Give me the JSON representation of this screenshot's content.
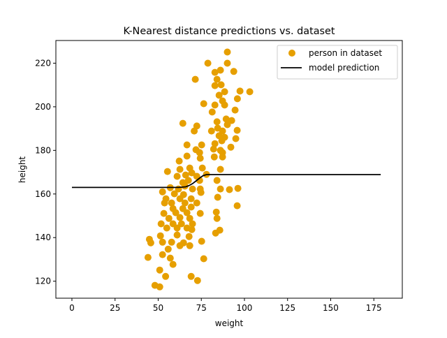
{
  "chart_data": {
    "type": "scatter",
    "title": "K-Nearest distance predictions vs. dataset",
    "xlabel": "weight",
    "ylabel": "height",
    "xlim": [
      -9.3,
      191.5
    ],
    "ylim": [
      112.2,
      230.4
    ],
    "xticks": [
      0,
      25,
      50,
      75,
      100,
      125,
      150,
      175
    ],
    "yticks": [
      120,
      140,
      160,
      180,
      200,
      220
    ],
    "grid": false,
    "legend": {
      "placement": "top-right",
      "entries": [
        "person in dataset",
        "model prediction"
      ]
    },
    "colors": {
      "scatter": "#E69F00",
      "line": "#000000"
    },
    "series": [
      {
        "name": "person in dataset",
        "type": "scatter",
        "points": [
          [
            90.1,
            225.1
          ],
          [
            78.8,
            220
          ],
          [
            90.1,
            220
          ],
          [
            86.1,
            216.8
          ],
          [
            93.8,
            216.2
          ],
          [
            82.9,
            215.8
          ],
          [
            71.5,
            212.6
          ],
          [
            84.1,
            212.6
          ],
          [
            82.9,
            209.7
          ],
          [
            86.5,
            210.1
          ],
          [
            88.5,
            206.9
          ],
          [
            97.4,
            207.2
          ],
          [
            103.1,
            206.9
          ],
          [
            85.3,
            205.3
          ],
          [
            95.9,
            203.7
          ],
          [
            76.4,
            201.4
          ],
          [
            87.3,
            202.7
          ],
          [
            82.9,
            200.8
          ],
          [
            88.5,
            200.8
          ],
          [
            81.3,
            197.6
          ],
          [
            94.6,
            198.5
          ],
          [
            64.3,
            192.4
          ],
          [
            72.4,
            191.2
          ],
          [
            84.1,
            193.1
          ],
          [
            89.4,
            194.4
          ],
          [
            90.1,
            191.8
          ],
          [
            92.6,
            193.7
          ],
          [
            70.9,
            188.9
          ],
          [
            80.9,
            188.9
          ],
          [
            84.5,
            190.2
          ],
          [
            87.3,
            188.9
          ],
          [
            95.8,
            189.2
          ],
          [
            85.3,
            186.7
          ],
          [
            88.5,
            186
          ],
          [
            95,
            185.4
          ],
          [
            66.7,
            182.5
          ],
          [
            75.2,
            182.5
          ],
          [
            82.9,
            183.1
          ],
          [
            86.9,
            184.4
          ],
          [
            92.1,
            181.5
          ],
          [
            71.9,
            180.3
          ],
          [
            74,
            179
          ],
          [
            82.1,
            180.6
          ],
          [
            86.1,
            180
          ],
          [
            87.3,
            179
          ],
          [
            62.2,
            175.1
          ],
          [
            66.7,
            177.4
          ],
          [
            74.4,
            176.4
          ],
          [
            82.5,
            177
          ],
          [
            87.3,
            177
          ],
          [
            55.4,
            170.3
          ],
          [
            62.6,
            171.3
          ],
          [
            68.3,
            171.9
          ],
          [
            75.6,
            171.9
          ],
          [
            69.5,
            169.7
          ],
          [
            86.1,
            171.3
          ],
          [
            61,
            168.1
          ],
          [
            65.9,
            168.7
          ],
          [
            72.4,
            168.1
          ],
          [
            78,
            169
          ],
          [
            84.1,
            166.2
          ],
          [
            64.3,
            165.2
          ],
          [
            67.5,
            166.2
          ],
          [
            74,
            166.2
          ],
          [
            57,
            162.9
          ],
          [
            61.8,
            162.3
          ],
          [
            65.5,
            163.6
          ],
          [
            69.9,
            162.3
          ],
          [
            74.4,
            162.3
          ],
          [
            86.1,
            162.3
          ],
          [
            91.3,
            162
          ],
          [
            96.2,
            162.6
          ],
          [
            52.5,
            161
          ],
          [
            59.4,
            160.1
          ],
          [
            64.7,
            159.7
          ],
          [
            74.8,
            160.7
          ],
          [
            84.5,
            158.5
          ],
          [
            54.5,
            157.8
          ],
          [
            62.6,
            157.8
          ],
          [
            69.1,
            157.8
          ],
          [
            57.8,
            155.9
          ],
          [
            65.5,
            155.9
          ],
          [
            72.4,
            155.9
          ],
          [
            53.7,
            155.9
          ],
          [
            95.8,
            154.6
          ],
          [
            58.6,
            153.3
          ],
          [
            64.3,
            153.3
          ],
          [
            69.1,
            154
          ],
          [
            53.3,
            151.1
          ],
          [
            60.2,
            151.4
          ],
          [
            66.7,
            151.4
          ],
          [
            74.4,
            151.1
          ],
          [
            83.7,
            151.7
          ],
          [
            56.2,
            148.8
          ],
          [
            62.6,
            149.2
          ],
          [
            68.3,
            148.8
          ],
          [
            84.1,
            148.8
          ],
          [
            51.7,
            146.3
          ],
          [
            58.6,
            146.3
          ],
          [
            63.5,
            146.3
          ],
          [
            69.9,
            146.3
          ],
          [
            55,
            144.4
          ],
          [
            61,
            144.4
          ],
          [
            66.7,
            144.4
          ],
          [
            69.5,
            143.7
          ],
          [
            85.7,
            143.4
          ],
          [
            83.3,
            142.1
          ],
          [
            51.3,
            140.8
          ],
          [
            61,
            141.2
          ],
          [
            67.9,
            140.5
          ],
          [
            57.8,
            137.9
          ],
          [
            52.5,
            137.9
          ],
          [
            64.7,
            137.6
          ],
          [
            75.2,
            138.3
          ],
          [
            62.6,
            136.3
          ],
          [
            68.3,
            136.3
          ],
          [
            44.9,
            139.2
          ],
          [
            45.7,
            137.6
          ],
          [
            55.8,
            134.7
          ],
          [
            52.5,
            132.2
          ],
          [
            57,
            130.6
          ],
          [
            44.1,
            130.9
          ],
          [
            76.4,
            130.3
          ],
          [
            58.6,
            127.7
          ],
          [
            50.9,
            125.1
          ],
          [
            54.3,
            122.2
          ],
          [
            69.1,
            122.2
          ],
          [
            72.8,
            120.3
          ],
          [
            48.1,
            118.1
          ],
          [
            50.9,
            117.4
          ]
        ]
      },
      {
        "name": "model prediction",
        "type": "line",
        "points": [
          [
            0,
            163
          ],
          [
            62,
            163
          ],
          [
            66,
            163.3
          ],
          [
            68,
            163.9
          ],
          [
            70,
            164.8
          ],
          [
            72,
            166
          ],
          [
            74,
            167.3
          ],
          [
            76,
            168.4
          ],
          [
            78,
            168.9
          ],
          [
            179,
            168.9
          ]
        ]
      }
    ]
  }
}
